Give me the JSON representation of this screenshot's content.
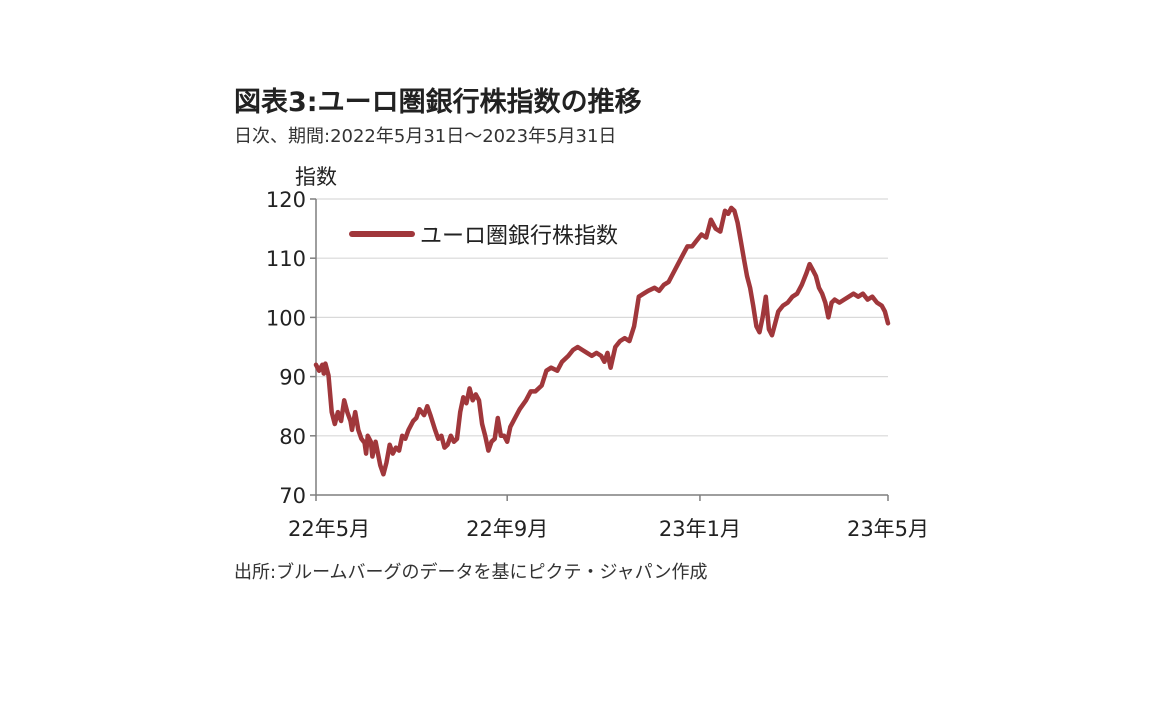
{
  "header": {
    "title": "図表3:ユーロ圏銀行株指数の推移",
    "subtitle": "日次、期間:2022年5月31日～2023年5月31日"
  },
  "footer": {
    "source": "出所:ブルームバーグのデータを基にピクテ・ジャパン作成"
  },
  "colors": {
    "series": "#a0373b",
    "grid": "#d9d9d9",
    "axis": "#7f7f7f"
  },
  "chart_data": {
    "type": "line",
    "ylabel": "指数",
    "ylim": [
      70,
      120
    ],
    "yticks": [
      70,
      80,
      90,
      100,
      110,
      120
    ],
    "xlim": [
      "2022-05-31",
      "2023-05-31"
    ],
    "xticks": [
      {
        "date": "2022-05-31",
        "label": "22年5月"
      },
      {
        "date": "2022-09-30",
        "label": "22年9月"
      },
      {
        "date": "2023-01-31",
        "label": "23年1月"
      },
      {
        "date": "2023-05-31",
        "label": "23年5月"
      }
    ],
    "grid": true,
    "legend_position": "top-left",
    "series": [
      {
        "name": "ユーロ圏銀行株指数",
        "color": "#a0373b",
        "points": [
          [
            "2022-05-31",
            92
          ],
          [
            "2022-06-02",
            91
          ],
          [
            "2022-06-04",
            92
          ],
          [
            "2022-06-05",
            90.5
          ],
          [
            "2022-06-06",
            92.2
          ],
          [
            "2022-06-08",
            90.2
          ],
          [
            "2022-06-10",
            84
          ],
          [
            "2022-06-12",
            82
          ],
          [
            "2022-06-14",
            84
          ],
          [
            "2022-06-16",
            82.5
          ],
          [
            "2022-06-18",
            86
          ],
          [
            "2022-06-20",
            84
          ],
          [
            "2022-06-22",
            82.5
          ],
          [
            "2022-06-23",
            81
          ],
          [
            "2022-06-25",
            84
          ],
          [
            "2022-06-27",
            81
          ],
          [
            "2022-06-29",
            79.5
          ],
          [
            "2022-07-01",
            78.8
          ],
          [
            "2022-07-02",
            77
          ],
          [
            "2022-07-03",
            80
          ],
          [
            "2022-07-05",
            79
          ],
          [
            "2022-07-06",
            76.5
          ],
          [
            "2022-07-08",
            79
          ],
          [
            "2022-07-11",
            75
          ],
          [
            "2022-07-13",
            73.5
          ],
          [
            "2022-07-15",
            75.5
          ],
          [
            "2022-07-17",
            78.5
          ],
          [
            "2022-07-19",
            77
          ],
          [
            "2022-07-21",
            78
          ],
          [
            "2022-07-23",
            77.5
          ],
          [
            "2022-07-25",
            80
          ],
          [
            "2022-07-27",
            79.5
          ],
          [
            "2022-07-29",
            81
          ],
          [
            "2022-08-01",
            82.5
          ],
          [
            "2022-08-03",
            83
          ],
          [
            "2022-08-05",
            84.5
          ],
          [
            "2022-08-08",
            83.5
          ],
          [
            "2022-08-10",
            85
          ],
          [
            "2022-08-12",
            83.5
          ],
          [
            "2022-08-15",
            81
          ],
          [
            "2022-08-17",
            79.5
          ],
          [
            "2022-08-19",
            80
          ],
          [
            "2022-08-21",
            78
          ],
          [
            "2022-08-23",
            78.5
          ],
          [
            "2022-08-25",
            80
          ],
          [
            "2022-08-27",
            79
          ],
          [
            "2022-08-29",
            79.5
          ],
          [
            "2022-08-31",
            84
          ],
          [
            "2022-09-02",
            86.5
          ],
          [
            "2022-09-04",
            85.5
          ],
          [
            "2022-09-06",
            88
          ],
          [
            "2022-09-08",
            86
          ],
          [
            "2022-09-10",
            87
          ],
          [
            "2022-09-12",
            86
          ],
          [
            "2022-09-14",
            82
          ],
          [
            "2022-09-16",
            80
          ],
          [
            "2022-09-18",
            77.5
          ],
          [
            "2022-09-20",
            79
          ],
          [
            "2022-09-22",
            79.5
          ],
          [
            "2022-09-24",
            83
          ],
          [
            "2022-09-26",
            80
          ],
          [
            "2022-09-28",
            80
          ],
          [
            "2022-09-30",
            79
          ],
          [
            "2022-10-02",
            81.5
          ],
          [
            "2022-10-05",
            83
          ],
          [
            "2022-10-08",
            84.5
          ],
          [
            "2022-10-12",
            86
          ],
          [
            "2022-10-15",
            87.5
          ],
          [
            "2022-10-18",
            87.5
          ],
          [
            "2022-10-22",
            88.5
          ],
          [
            "2022-10-25",
            91
          ],
          [
            "2022-10-28",
            91.5
          ],
          [
            "2022-11-01",
            91
          ],
          [
            "2022-11-04",
            92.5
          ],
          [
            "2022-11-08",
            93.5
          ],
          [
            "2022-11-11",
            94.5
          ],
          [
            "2022-11-14",
            95
          ],
          [
            "2022-11-17",
            94.5
          ],
          [
            "2022-11-20",
            94
          ],
          [
            "2022-11-23",
            93.5
          ],
          [
            "2022-11-26",
            94
          ],
          [
            "2022-11-29",
            93.5
          ],
          [
            "2022-12-01",
            92.5
          ],
          [
            "2022-12-03",
            94
          ],
          [
            "2022-12-05",
            91.5
          ],
          [
            "2022-12-08",
            95
          ],
          [
            "2022-12-11",
            96
          ],
          [
            "2022-12-14",
            96.5
          ],
          [
            "2022-12-17",
            96
          ],
          [
            "2022-12-20",
            98.5
          ],
          [
            "2022-12-23",
            103.5
          ],
          [
            "2022-12-26",
            104
          ],
          [
            "2022-12-29",
            104.5
          ],
          [
            "2023-01-02",
            105
          ],
          [
            "2023-01-05",
            104.5
          ],
          [
            "2023-01-08",
            105.5
          ],
          [
            "2023-01-11",
            106
          ],
          [
            "2023-01-14",
            107.5
          ],
          [
            "2023-01-17",
            109
          ],
          [
            "2023-01-20",
            110.5
          ],
          [
            "2023-01-23",
            112
          ],
          [
            "2023-01-26",
            112
          ],
          [
            "2023-01-29",
            113
          ],
          [
            "2023-02-01",
            114
          ],
          [
            "2023-02-04",
            113.5
          ],
          [
            "2023-02-07",
            116.5
          ],
          [
            "2023-02-10",
            115
          ],
          [
            "2023-02-13",
            114.5
          ],
          [
            "2023-02-16",
            118
          ],
          [
            "2023-02-18",
            117.5
          ],
          [
            "2023-02-20",
            118.5
          ],
          [
            "2023-02-22",
            118
          ],
          [
            "2023-02-24",
            116
          ],
          [
            "2023-02-26",
            113
          ],
          [
            "2023-02-28",
            110
          ],
          [
            "2023-03-02",
            107
          ],
          [
            "2023-03-04",
            105
          ],
          [
            "2023-03-06",
            102
          ],
          [
            "2023-03-08",
            98.5
          ],
          [
            "2023-03-10",
            97.5
          ],
          [
            "2023-03-12",
            100
          ],
          [
            "2023-03-14",
            103.5
          ],
          [
            "2023-03-16",
            98
          ],
          [
            "2023-03-18",
            97
          ],
          [
            "2023-03-20",
            99
          ],
          [
            "2023-03-22",
            101
          ],
          [
            "2023-03-25",
            102
          ],
          [
            "2023-03-28",
            102.5
          ],
          [
            "2023-03-31",
            103.5
          ],
          [
            "2023-04-03",
            104
          ],
          [
            "2023-04-06",
            105.5
          ],
          [
            "2023-04-09",
            107.5
          ],
          [
            "2023-04-11",
            109
          ],
          [
            "2023-04-13",
            108
          ],
          [
            "2023-04-15",
            107
          ],
          [
            "2023-04-17",
            105
          ],
          [
            "2023-04-19",
            104
          ],
          [
            "2023-04-21",
            102.5
          ],
          [
            "2023-04-23",
            100
          ],
          [
            "2023-04-25",
            102.5
          ],
          [
            "2023-04-27",
            103
          ],
          [
            "2023-04-30",
            102.5
          ],
          [
            "2023-05-03",
            103
          ],
          [
            "2023-05-06",
            103.5
          ],
          [
            "2023-05-09",
            104
          ],
          [
            "2023-05-12",
            103.5
          ],
          [
            "2023-05-15",
            104
          ],
          [
            "2023-05-18",
            103
          ],
          [
            "2023-05-21",
            103.5
          ],
          [
            "2023-05-24",
            102.5
          ],
          [
            "2023-05-27",
            102
          ],
          [
            "2023-05-29",
            101
          ],
          [
            "2023-05-31",
            99
          ]
        ]
      }
    ]
  }
}
